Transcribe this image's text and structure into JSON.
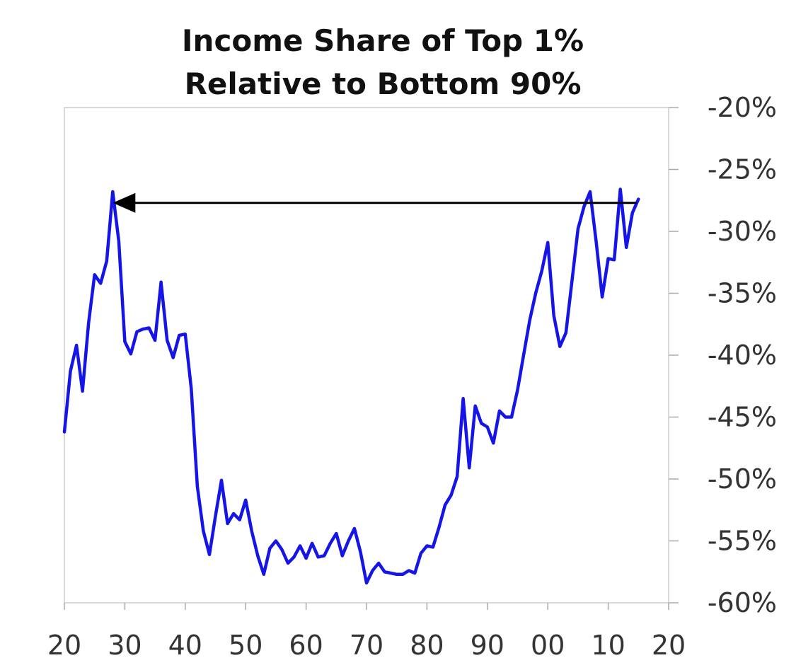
{
  "chart_data": {
    "type": "line",
    "title_lines": [
      "Income Share of Top 1%",
      "Relative to Bottom 90%"
    ],
    "xlabel": "",
    "ylabel": "",
    "xlim": [
      1920,
      2020
    ],
    "ylim": [
      -60,
      -20
    ],
    "x_ticks": [
      1920,
      1930,
      1940,
      1950,
      1960,
      1970,
      1980,
      1990,
      2000,
      2010,
      2020
    ],
    "x_tick_labels": [
      "20",
      "30",
      "40",
      "50",
      "60",
      "70",
      "80",
      "90",
      "00",
      "10",
      "20"
    ],
    "y_ticks": [
      -20,
      -25,
      -30,
      -35,
      -40,
      -45,
      -50,
      -55,
      -60
    ],
    "y_tick_labels": [
      "-20%",
      "-25%",
      "-30%",
      "-35%",
      "-40%",
      "-45%",
      "-50%",
      "-55%",
      "-60%"
    ],
    "grid": false,
    "series": [
      {
        "color": "#1515e8",
        "x": [
          1920,
          1921,
          1922,
          1923,
          1924,
          1925,
          1926,
          1927,
          1928,
          1929,
          1930,
          1931,
          1932,
          1933,
          1934,
          1935,
          1936,
          1937,
          1938,
          1939,
          1940,
          1941,
          1942,
          1943,
          1944,
          1945,
          1946,
          1947,
          1948,
          1949,
          1950,
          1951,
          1952,
          1953,
          1954,
          1955,
          1956,
          1957,
          1958,
          1959,
          1960,
          1961,
          1962,
          1963,
          1964,
          1965,
          1966,
          1967,
          1968,
          1969,
          1970,
          1971,
          1972,
          1973,
          1974,
          1975,
          1976,
          1977,
          1978,
          1979,
          1980,
          1981,
          1982,
          1983,
          1984,
          1985,
          1986,
          1987,
          1988,
          1989,
          1990,
          1991,
          1992,
          1993,
          1994,
          1995,
          1996,
          1997,
          1998,
          1999,
          2000,
          2001,
          2002,
          2003,
          2004,
          2005,
          2006,
          2007,
          2008,
          2009,
          2010,
          2011,
          2012,
          2013,
          2014,
          2015
        ],
        "values": [
          -46.2,
          -41.3,
          -39.2,
          -42.9,
          -37.4,
          -33.5,
          -34.2,
          -32.4,
          -26.8,
          -30.8,
          -38.9,
          -39.9,
          -38.1,
          -37.9,
          -37.8,
          -38.8,
          -34.1,
          -38.8,
          -40.2,
          -38.4,
          -38.3,
          -42.7,
          -50.6,
          -54.2,
          -56.1,
          -53.0,
          -50.1,
          -53.6,
          -52.8,
          -53.3,
          -51.7,
          -54.2,
          -56.2,
          -57.7,
          -55.6,
          -55.0,
          -55.7,
          -56.8,
          -56.3,
          -55.4,
          -56.4,
          -55.2,
          -56.3,
          -56.2,
          -55.2,
          -54.4,
          -56.2,
          -55.0,
          -54.0,
          -55.9,
          -58.4,
          -57.4,
          -56.8,
          -57.5,
          -57.6,
          -57.7,
          -57.7,
          -57.4,
          -57.6,
          -56.0,
          -55.4,
          -55.5,
          -53.9,
          -52.1,
          -51.3,
          -49.8,
          -43.5,
          -49.1,
          -44.1,
          -45.5,
          -45.8,
          -47.1,
          -44.5,
          -45.0,
          -45.0,
          -42.8,
          -40.0,
          -37.2,
          -35.0,
          -33.2,
          -30.9,
          -36.8,
          -39.3,
          -38.2,
          -34.0,
          -29.8,
          -28.0,
          -26.8,
          -30.8,
          -35.3,
          -32.2,
          -32.3,
          -26.6,
          -31.3,
          -28.5,
          -27.4
        ]
      }
    ],
    "annotations": [
      {
        "type": "arrow",
        "from": [
          2014.7,
          -27.7
        ],
        "to": [
          1928,
          -27.7
        ],
        "color": "#000000"
      }
    ]
  }
}
